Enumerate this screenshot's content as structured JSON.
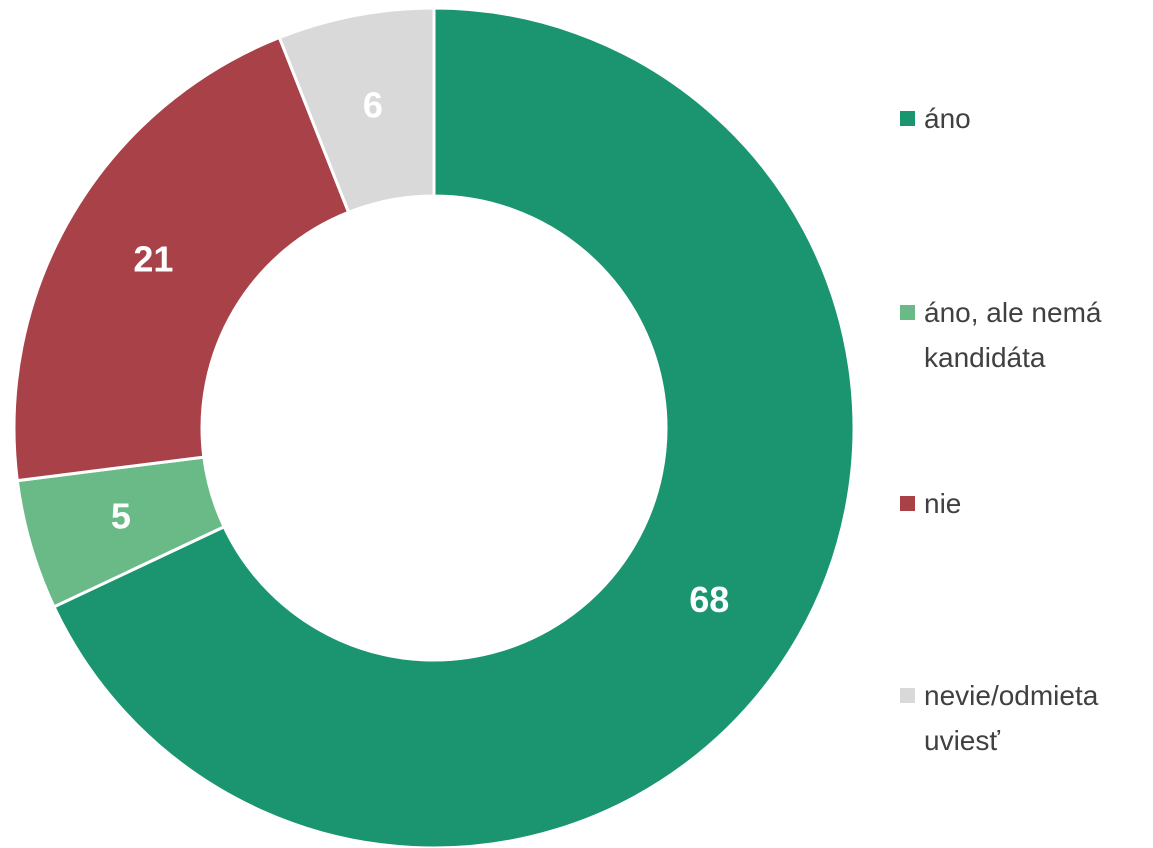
{
  "chart_data": {
    "type": "donut",
    "categories": [
      "áno",
      "áno, ale nemá kandidáta",
      "nie",
      "nevie/odmieta uviesť"
    ],
    "values": [
      68,
      5,
      21,
      6
    ],
    "colors": [
      "#1a9570",
      "#6aba87",
      "#a94149",
      "#d9d9d9"
    ],
    "legend": "right"
  }
}
